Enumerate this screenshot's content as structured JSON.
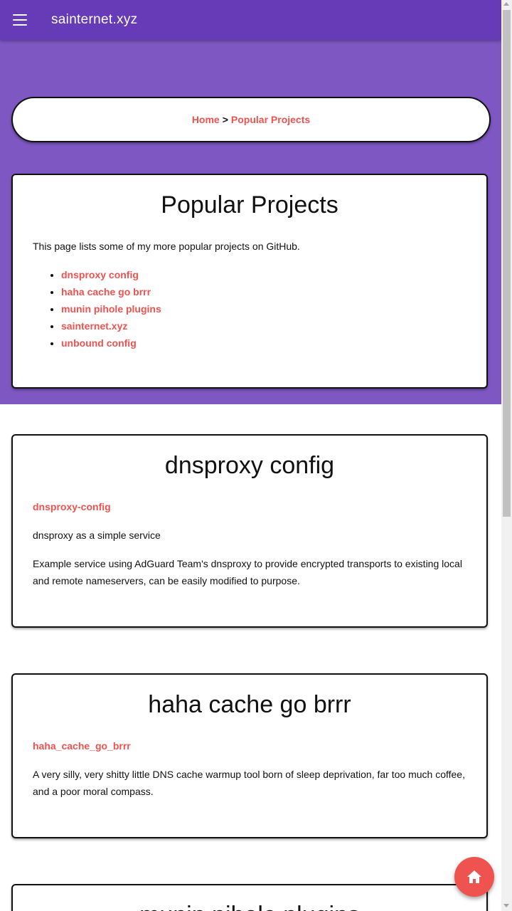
{
  "appbar": {
    "title": "sainternet.xyz",
    "menu_icon": "menu-icon"
  },
  "breadcrumb": {
    "home": "Home",
    "separator": ">",
    "current": "Popular Projects"
  },
  "intro": {
    "title": "Popular Projects",
    "text": "This page lists some of my more popular projects on GitHub.",
    "links": [
      "dnsproxy config",
      "haha cache go brrr",
      "munin pihole plugins",
      "sainternet.xyz",
      "unbound config"
    ]
  },
  "projects": [
    {
      "title": "dnsproxy config",
      "repo": "dnsproxy-config",
      "summary": "dnsproxy as a simple service",
      "description": "Example service using AdGuard Team's dnsproxy to provide encrypted transports to existing local and remote nameservers, can be easily modified to purpose."
    },
    {
      "title": "haha cache go brrr",
      "repo": "haha_cache_go_brrr",
      "description": "A very silly, very shitty little DNS cache warmup tool born of sleep deprivation, far too much coffee, and a poor moral compass."
    },
    {
      "title": "munin pihole plugins"
    }
  ],
  "fab": {
    "icon": "home-icon"
  },
  "colors": {
    "appbar": "#673ab7",
    "hero": "#7e57c2",
    "accent": "#ef5350"
  }
}
